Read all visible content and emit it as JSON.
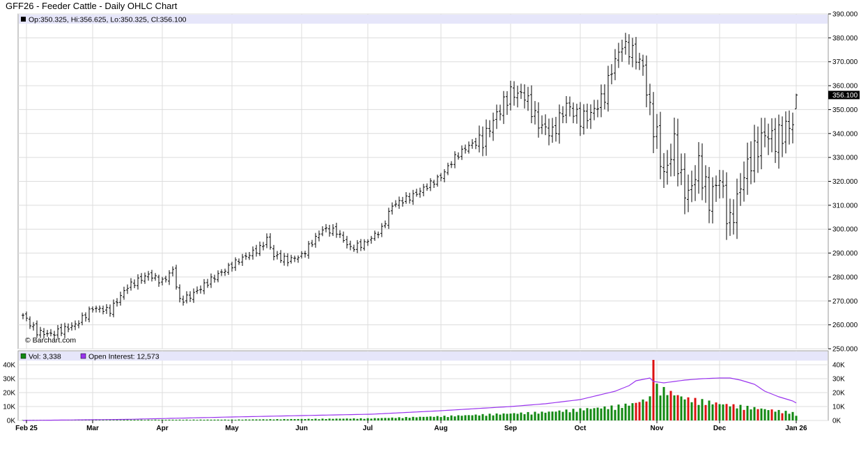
{
  "title": "GFF26 - Feeder Cattle - Daily OHLC Chart",
  "watermark": "© Barchart.com",
  "info_bar": "Op:350.325, Hi:356.625, Lo:350.325, Cl:356.100",
  "last_price_label": "356.100",
  "volume_legend": {
    "vol": "Vol: 3,338",
    "oi": "Open Interest: 12,573"
  },
  "colors": {
    "ohlc": "#000000",
    "vol_up": "#118811",
    "vol_down": "#dd1111",
    "oi": "#9933ee",
    "info_bg": "#e6e6fa",
    "label_bg": "#000000"
  },
  "chart_data": [
    {
      "type": "ohlc",
      "title": "GFF26 - Feeder Cattle - Daily OHLC Chart",
      "y_ticks": [
        "250.000",
        "260.000",
        "270.000",
        "280.000",
        "290.000",
        "300.000",
        "310.000",
        "320.000",
        "330.000",
        "340.000",
        "350.000",
        "360.000",
        "370.000",
        "380.000",
        "390.000"
      ],
      "ylim": [
        250,
        390
      ],
      "x_ticks": [
        "Feb 25",
        "Mar",
        "Apr",
        "May",
        "Jun",
        "Jul",
        "Aug",
        "Sep",
        "Oct",
        "Nov",
        "Dec",
        "Jan 26"
      ],
      "x_tick_index": [
        1,
        20,
        40,
        60,
        80,
        99,
        120,
        140,
        160,
        182,
        200,
        222
      ],
      "n_bars": 223,
      "anchors": [
        [
          0,
          264
        ],
        [
          4,
          257
        ],
        [
          8,
          256
        ],
        [
          15,
          260
        ],
        [
          20,
          267
        ],
        [
          25,
          266
        ],
        [
          30,
          276
        ],
        [
          36,
          281
        ],
        [
          40,
          278
        ],
        [
          43,
          283
        ],
        [
          45,
          270
        ],
        [
          48,
          272
        ],
        [
          55,
          280
        ],
        [
          62,
          287
        ],
        [
          68,
          292
        ],
        [
          70,
          296
        ],
        [
          72,
          289
        ],
        [
          76,
          287
        ],
        [
          80,
          289
        ],
        [
          86,
          300
        ],
        [
          90,
          299
        ],
        [
          94,
          292
        ],
        [
          98,
          294
        ],
        [
          103,
          300
        ],
        [
          106,
          310
        ],
        [
          112,
          314
        ],
        [
          120,
          322
        ],
        [
          124,
          330
        ],
        [
          128,
          335
        ],
        [
          132,
          337
        ],
        [
          136,
          348
        ],
        [
          140,
          357
        ],
        [
          144,
          356
        ],
        [
          148,
          344
        ],
        [
          152,
          340
        ],
        [
          156,
          352
        ],
        [
          160,
          346
        ],
        [
          163,
          348
        ],
        [
          167,
          356
        ],
        [
          169,
          367
        ],
        [
          172,
          377
        ],
        [
          175,
          374
        ],
        [
          178,
          368
        ],
        [
          180,
          349
        ],
        [
          182,
          338
        ],
        [
          184,
          322
        ],
        [
          187,
          336
        ],
        [
          189,
          320
        ],
        [
          191,
          314
        ],
        [
          194,
          327
        ],
        [
          197,
          312
        ],
        [
          200,
          322
        ],
        [
          202,
          307
        ],
        [
          203,
          302
        ],
        [
          205,
          312
        ],
        [
          207,
          323
        ],
        [
          210,
          332
        ],
        [
          213,
          340
        ],
        [
          216,
          337
        ],
        [
          219,
          342
        ],
        [
          222,
          346
        ],
        [
          225,
          352
        ]
      ],
      "last_bar": {
        "open": 350.325,
        "high": 356.625,
        "low": 350.325,
        "close": 356.1
      }
    },
    {
      "type": "bar+line",
      "title": "Volume / Open Interest",
      "left_ticks": [
        "0K",
        "10K",
        "20K",
        "30K",
        "40K"
      ],
      "right_ticks": [
        "0K",
        "10K",
        "20K",
        "30K",
        "40K"
      ],
      "ylim": [
        0,
        40
      ],
      "units": "K",
      "volume_anchors": [
        [
          0,
          0.4
        ],
        [
          60,
          0.6
        ],
        [
          100,
          1.5
        ],
        [
          120,
          3
        ],
        [
          140,
          5
        ],
        [
          150,
          6
        ],
        [
          160,
          8
        ],
        [
          170,
          10
        ],
        [
          175,
          12
        ],
        [
          180,
          16
        ],
        [
          181,
          45
        ],
        [
          182,
          24
        ],
        [
          190,
          16
        ],
        [
          200,
          12
        ],
        [
          210,
          9
        ],
        [
          220,
          6
        ],
        [
          225,
          4
        ]
      ],
      "volume_down_days": [
        181,
        176,
        177,
        179,
        186,
        188,
        191,
        193,
        196,
        199,
        202,
        204,
        207,
        211,
        215,
        218
      ],
      "oi_anchors": [
        [
          0,
          0
        ],
        [
          30,
          0.8
        ],
        [
          60,
          2.5
        ],
        [
          100,
          4.5
        ],
        [
          120,
          7
        ],
        [
          140,
          10
        ],
        [
          150,
          12
        ],
        [
          160,
          15
        ],
        [
          170,
          21
        ],
        [
          174,
          25
        ],
        [
          176,
          28.5
        ],
        [
          180,
          30.5
        ],
        [
          181,
          28
        ],
        [
          184,
          27
        ],
        [
          190,
          29
        ],
        [
          195,
          30
        ],
        [
          200,
          30.5
        ],
        [
          203,
          30.5
        ],
        [
          206,
          29
        ],
        [
          210,
          26
        ],
        [
          213,
          21
        ],
        [
          217,
          17
        ],
        [
          221,
          14
        ],
        [
          225,
          12.3
        ]
      ],
      "last_volume": 3338,
      "last_open_interest": 12573
    }
  ]
}
